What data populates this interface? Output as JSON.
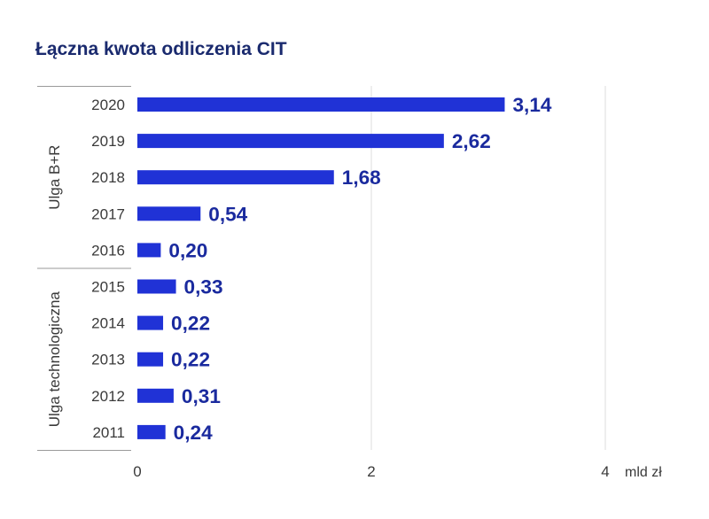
{
  "chart_data": {
    "type": "bar",
    "orientation": "horizontal",
    "title": "Łączna kwota odliczenia CIT",
    "categories": [
      "2020",
      "2019",
      "2018",
      "2017",
      "2016",
      "2015",
      "2014",
      "2013",
      "2012",
      "2011"
    ],
    "values": [
      3.14,
      2.62,
      1.68,
      0.54,
      0.2,
      0.33,
      0.22,
      0.22,
      0.31,
      0.24
    ],
    "value_labels": [
      "3,14",
      "2,62",
      "1,68",
      "0,54",
      "0,20",
      "0,33",
      "0,22",
      "0,22",
      "0,31",
      "0,24"
    ],
    "groups": [
      {
        "label": "Ulga B+R",
        "categories": [
          "2020",
          "2019",
          "2018",
          "2017",
          "2016"
        ]
      },
      {
        "label": "Ulga technologiczna",
        "categories": [
          "2015",
          "2014",
          "2013",
          "2012",
          "2011"
        ]
      }
    ],
    "x_ticks": [
      0,
      2,
      4
    ],
    "x_tick_labels": [
      "0",
      "2",
      "4"
    ],
    "xlabel": "mld zł",
    "xlim": [
      0,
      4
    ],
    "grid": true,
    "colors": {
      "bar": "#2032d6",
      "value_label": "#1a2a9e",
      "title": "#1a2a6e",
      "grid": "#dcdcdc",
      "group_divider": "#9a9a9a"
    }
  }
}
